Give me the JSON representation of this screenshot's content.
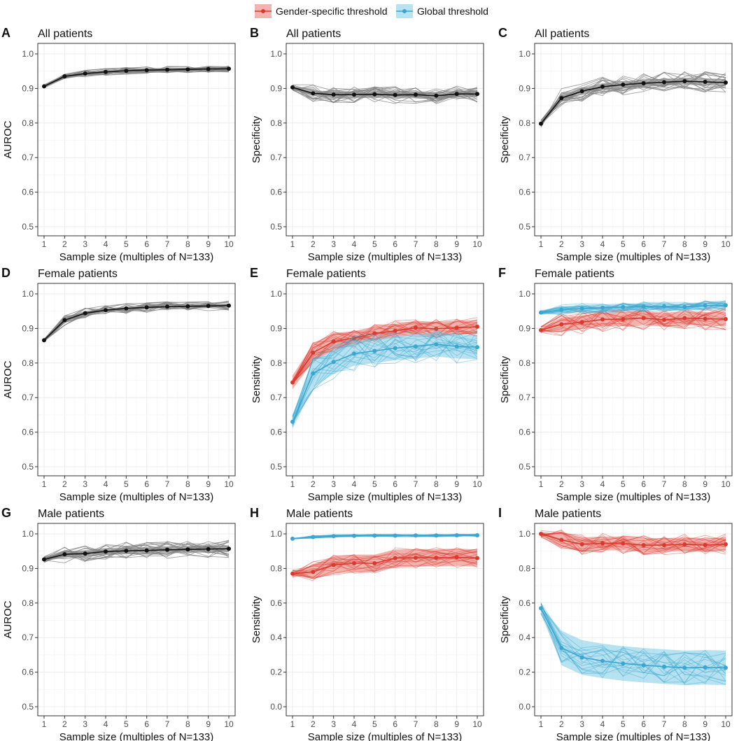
{
  "colors": {
    "gender": "#d93a2f",
    "gender_band": "#e8756b",
    "global": "#3aa6cf",
    "global_band": "#7ccbe6",
    "black": "#111111",
    "gray_line": "#7f7f7f",
    "grid": "#ececec",
    "panel_border": "#333333"
  },
  "legend": {
    "entries": [
      {
        "key": "gender",
        "label": "Gender-specific threshold"
      },
      {
        "key": "global",
        "label": "Global threshold"
      }
    ]
  },
  "chart_data": [
    {
      "panel": "A",
      "type": "line",
      "title": "All patients",
      "xlabel": "Sample size (multiples of N=133)",
      "ylabel": "AUROC",
      "x": [
        1,
        2,
        3,
        4,
        5,
        6,
        7,
        8,
        9,
        10
      ],
      "xlim": [
        1,
        10
      ],
      "ylim": [
        0.5,
        1.0
      ],
      "yticks": [
        "0.5",
        "0.6",
        "0.7",
        "0.8",
        "0.9",
        "1.0"
      ],
      "series": [
        {
          "name": "mean",
          "color": "black",
          "values": [
            0.906,
            0.935,
            0.943,
            0.948,
            0.951,
            0.953,
            0.954,
            0.955,
            0.956,
            0.957
          ],
          "band": [
            0.006,
            0.006,
            0.005,
            0.005,
            0.005,
            0.005,
            0.005,
            0.005,
            0.005,
            0.005
          ],
          "spread": 0.01
        }
      ]
    },
    {
      "panel": "B",
      "type": "line",
      "title": "All patients",
      "xlabel": "Sample size (multiples of N=133)",
      "ylabel": "Specificity",
      "x": [
        1,
        2,
        3,
        4,
        5,
        6,
        7,
        8,
        9,
        10
      ],
      "xlim": [
        1,
        10
      ],
      "ylim": [
        0.5,
        1.0
      ],
      "yticks": [
        "0.5",
        "0.6",
        "0.7",
        "0.8",
        "0.9",
        "1.0"
      ],
      "series": [
        {
          "name": "mean",
          "color": "black",
          "values": [
            0.903,
            0.886,
            0.882,
            0.882,
            0.883,
            0.881,
            0.882,
            0.879,
            0.884,
            0.884
          ],
          "band": [
            0.005,
            0.008,
            0.01,
            0.01,
            0.01,
            0.01,
            0.01,
            0.01,
            0.01,
            0.01
          ],
          "spread": 0.025
        }
      ]
    },
    {
      "panel": "C",
      "type": "line",
      "title": "All patients",
      "xlabel": "Sample size (multiples of N=133)",
      "ylabel": "Specificity",
      "x": [
        1,
        2,
        3,
        4,
        5,
        6,
        7,
        8,
        9,
        10
      ],
      "xlim": [
        1,
        10
      ],
      "ylim": [
        0.5,
        1.0
      ],
      "yticks": [
        "0.5",
        "0.6",
        "0.7",
        "0.8",
        "0.9",
        "1.0"
      ],
      "series": [
        {
          "name": "mean",
          "color": "black",
          "values": [
            0.798,
            0.872,
            0.892,
            0.905,
            0.911,
            0.915,
            0.918,
            0.921,
            0.919,
            0.917
          ],
          "band": [
            0.006,
            0.01,
            0.01,
            0.01,
            0.01,
            0.01,
            0.01,
            0.01,
            0.01,
            0.01
          ],
          "spread": 0.03
        }
      ]
    },
    {
      "panel": "D",
      "type": "line",
      "title": "Female patients",
      "xlabel": "Sample size (multiples of N=133)",
      "ylabel": "AUROC",
      "x": [
        1,
        2,
        3,
        4,
        5,
        6,
        7,
        8,
        9,
        10
      ],
      "xlim": [
        1,
        10
      ],
      "ylim": [
        0.5,
        1.0
      ],
      "yticks": [
        "0.5",
        "0.6",
        "0.7",
        "0.8",
        "0.9",
        "1.0"
      ],
      "series": [
        {
          "name": "mean",
          "color": "black",
          "values": [
            0.866,
            0.924,
            0.944,
            0.953,
            0.958,
            0.961,
            0.963,
            0.964,
            0.965,
            0.966
          ],
          "band": [
            0.005,
            0.008,
            0.006,
            0.005,
            0.005,
            0.005,
            0.005,
            0.005,
            0.005,
            0.005
          ],
          "spread": 0.015
        }
      ]
    },
    {
      "panel": "E",
      "type": "line",
      "title": "Female patients",
      "xlabel": "Sample size (multiples of N=133)",
      "ylabel": "Sensitivity",
      "x": [
        1,
        2,
        3,
        4,
        5,
        6,
        7,
        8,
        9,
        10
      ],
      "xlim": [
        1,
        10
      ],
      "ylim": [
        0.5,
        1.0
      ],
      "yticks": [
        "0.5",
        "0.6",
        "0.7",
        "0.8",
        "0.9",
        "1.0"
      ],
      "series": [
        {
          "name": "Gender-specific threshold",
          "color": "gender",
          "values": [
            0.744,
            0.83,
            0.862,
            0.872,
            0.886,
            0.893,
            0.902,
            0.899,
            0.902,
            0.905
          ],
          "band": [
            0.02,
            0.025,
            0.025,
            0.02,
            0.02,
            0.02,
            0.02,
            0.02,
            0.02,
            0.02
          ],
          "spread": 0.03
        },
        {
          "name": "Global threshold",
          "color": "global",
          "values": [
            0.63,
            0.77,
            0.803,
            0.827,
            0.835,
            0.843,
            0.848,
            0.854,
            0.848,
            0.846
          ],
          "band": [
            0.02,
            0.04,
            0.035,
            0.035,
            0.035,
            0.035,
            0.035,
            0.035,
            0.035,
            0.035
          ],
          "spread": 0.05
        }
      ]
    },
    {
      "panel": "F",
      "type": "line",
      "title": "Female patients",
      "xlabel": "Sample size (multiples of N=133)",
      "ylabel": "Specificity",
      "x": [
        1,
        2,
        3,
        4,
        5,
        6,
        7,
        8,
        9,
        10
      ],
      "xlim": [
        1,
        10
      ],
      "ylim": [
        0.5,
        1.0
      ],
      "yticks": [
        "0.5",
        "0.6",
        "0.7",
        "0.8",
        "0.9",
        "1.0"
      ],
      "series": [
        {
          "name": "Gender-specific threshold",
          "color": "gender",
          "values": [
            0.895,
            0.912,
            0.918,
            0.926,
            0.927,
            0.93,
            0.925,
            0.93,
            0.928,
            0.927
          ],
          "band": [
            0.005,
            0.02,
            0.02,
            0.02,
            0.02,
            0.02,
            0.02,
            0.02,
            0.02,
            0.02
          ],
          "spread": 0.035
        },
        {
          "name": "Global threshold",
          "color": "global",
          "values": [
            0.946,
            0.954,
            0.958,
            0.96,
            0.962,
            0.963,
            0.964,
            0.962,
            0.966,
            0.967
          ],
          "band": [
            0.004,
            0.01,
            0.01,
            0.01,
            0.01,
            0.01,
            0.01,
            0.01,
            0.01,
            0.01
          ],
          "spread": 0.015
        }
      ]
    },
    {
      "panel": "G",
      "type": "line",
      "title": "Male patients",
      "xlabel": "Sample size (multiples of N=133)",
      "ylabel": "AUROC",
      "x": [
        1,
        2,
        3,
        4,
        5,
        6,
        7,
        8,
        9,
        10
      ],
      "xlim": [
        1,
        10
      ],
      "ylim": [
        0.5,
        1.0
      ],
      "yticks": [
        "0.5",
        "0.6",
        "0.7",
        "0.8",
        "0.9",
        "1.0"
      ],
      "series": [
        {
          "name": "mean",
          "color": "black",
          "values": [
            0.926,
            0.941,
            0.943,
            0.949,
            0.951,
            0.952,
            0.954,
            0.955,
            0.956,
            0.957
          ],
          "band": [
            0.004,
            0.008,
            0.01,
            0.01,
            0.01,
            0.01,
            0.01,
            0.01,
            0.01,
            0.01
          ],
          "spread": 0.025
        }
      ]
    },
    {
      "panel": "H",
      "type": "line",
      "title": "Male patients",
      "xlabel": "Sample size (multiples of N=133)",
      "ylabel": "Sensitivity",
      "x": [
        1,
        2,
        3,
        4,
        5,
        6,
        7,
        8,
        9,
        10
      ],
      "xlim": [
        1,
        10
      ],
      "ylim": [
        0.0,
        1.0
      ],
      "yticks": [
        "0.0",
        "0.2",
        "0.4",
        "0.6",
        "0.8",
        "1.0"
      ],
      "series": [
        {
          "name": "Gender-specific threshold",
          "color": "gender",
          "values": [
            0.77,
            0.78,
            0.82,
            0.83,
            0.83,
            0.86,
            0.862,
            0.862,
            0.865,
            0.86
          ],
          "band": [
            0.01,
            0.04,
            0.05,
            0.05,
            0.05,
            0.05,
            0.05,
            0.05,
            0.05,
            0.05
          ],
          "spread": 0.06
        },
        {
          "name": "Global threshold",
          "color": "global",
          "values": [
            0.972,
            0.982,
            0.987,
            0.989,
            0.99,
            0.99,
            0.991,
            0.991,
            0.992,
            0.992
          ],
          "band": [
            0.003,
            0.005,
            0.005,
            0.005,
            0.005,
            0.005,
            0.005,
            0.005,
            0.005,
            0.005
          ],
          "spread": 0.008
        }
      ]
    },
    {
      "panel": "I",
      "type": "line",
      "title": "Male patients",
      "xlabel": "Sample size (multiples of N=133)",
      "ylabel": "Specificity",
      "x": [
        1,
        2,
        3,
        4,
        5,
        6,
        7,
        8,
        9,
        10
      ],
      "xlim": [
        1,
        10
      ],
      "ylim": [
        0.0,
        1.0
      ],
      "yticks": [
        "0.0",
        "0.2",
        "0.4",
        "0.6",
        "0.8",
        "1.0"
      ],
      "series": [
        {
          "name": "Gender-specific threshold",
          "color": "gender",
          "values": [
            1.0,
            0.965,
            0.94,
            0.945,
            0.945,
            0.935,
            0.935,
            0.94,
            0.935,
            0.94
          ],
          "band": [
            0.005,
            0.04,
            0.04,
            0.04,
            0.04,
            0.04,
            0.04,
            0.04,
            0.04,
            0.04
          ],
          "spread": 0.06
        },
        {
          "name": "Global threshold",
          "color": "global",
          "values": [
            0.57,
            0.34,
            0.285,
            0.265,
            0.25,
            0.24,
            0.232,
            0.225,
            0.228,
            0.225
          ],
          "band": [
            0.01,
            0.1,
            0.1,
            0.1,
            0.1,
            0.1,
            0.1,
            0.1,
            0.1,
            0.1
          ],
          "spread": 0.1
        }
      ]
    }
  ]
}
